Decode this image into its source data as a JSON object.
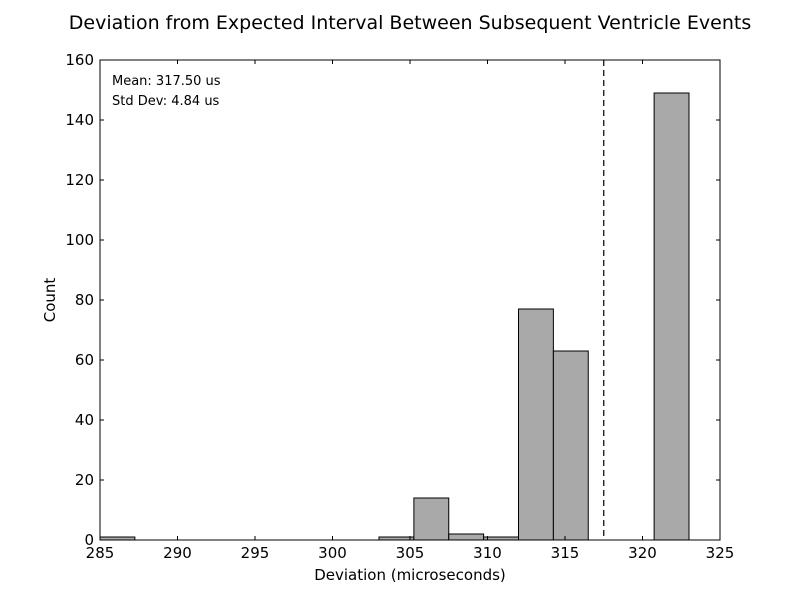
{
  "chart_data": {
    "type": "bar",
    "title": "Deviation from Expected Interval Between Subsequent Ventricle Events",
    "xlabel": "Deviation (microseconds)",
    "ylabel": "Count",
    "xlim": [
      285,
      325
    ],
    "ylim": [
      0,
      160
    ],
    "x_ticks": [
      285,
      290,
      295,
      300,
      305,
      310,
      315,
      320,
      325
    ],
    "y_ticks": [
      0,
      20,
      40,
      60,
      80,
      100,
      120,
      140,
      160
    ],
    "bar_color": "#a9a9a9",
    "bins": [
      {
        "x0": 285.0,
        "x1": 287.25,
        "count": 1
      },
      {
        "x0": 303.0,
        "x1": 305.25,
        "count": 1
      },
      {
        "x0": 305.25,
        "x1": 307.5,
        "count": 14
      },
      {
        "x0": 307.5,
        "x1": 309.75,
        "count": 2
      },
      {
        "x0": 309.75,
        "x1": 312.0,
        "count": 1
      },
      {
        "x0": 312.0,
        "x1": 314.25,
        "count": 77
      },
      {
        "x0": 314.25,
        "x1": 316.5,
        "count": 63
      },
      {
        "x0": 320.75,
        "x1": 323.0,
        "count": 149
      }
    ],
    "mean_line_x": 317.5,
    "annotations": {
      "mean": "Mean: 317.50 us",
      "std": "Std Dev: 4.84 us"
    },
    "grid": false,
    "legend": "none"
  }
}
